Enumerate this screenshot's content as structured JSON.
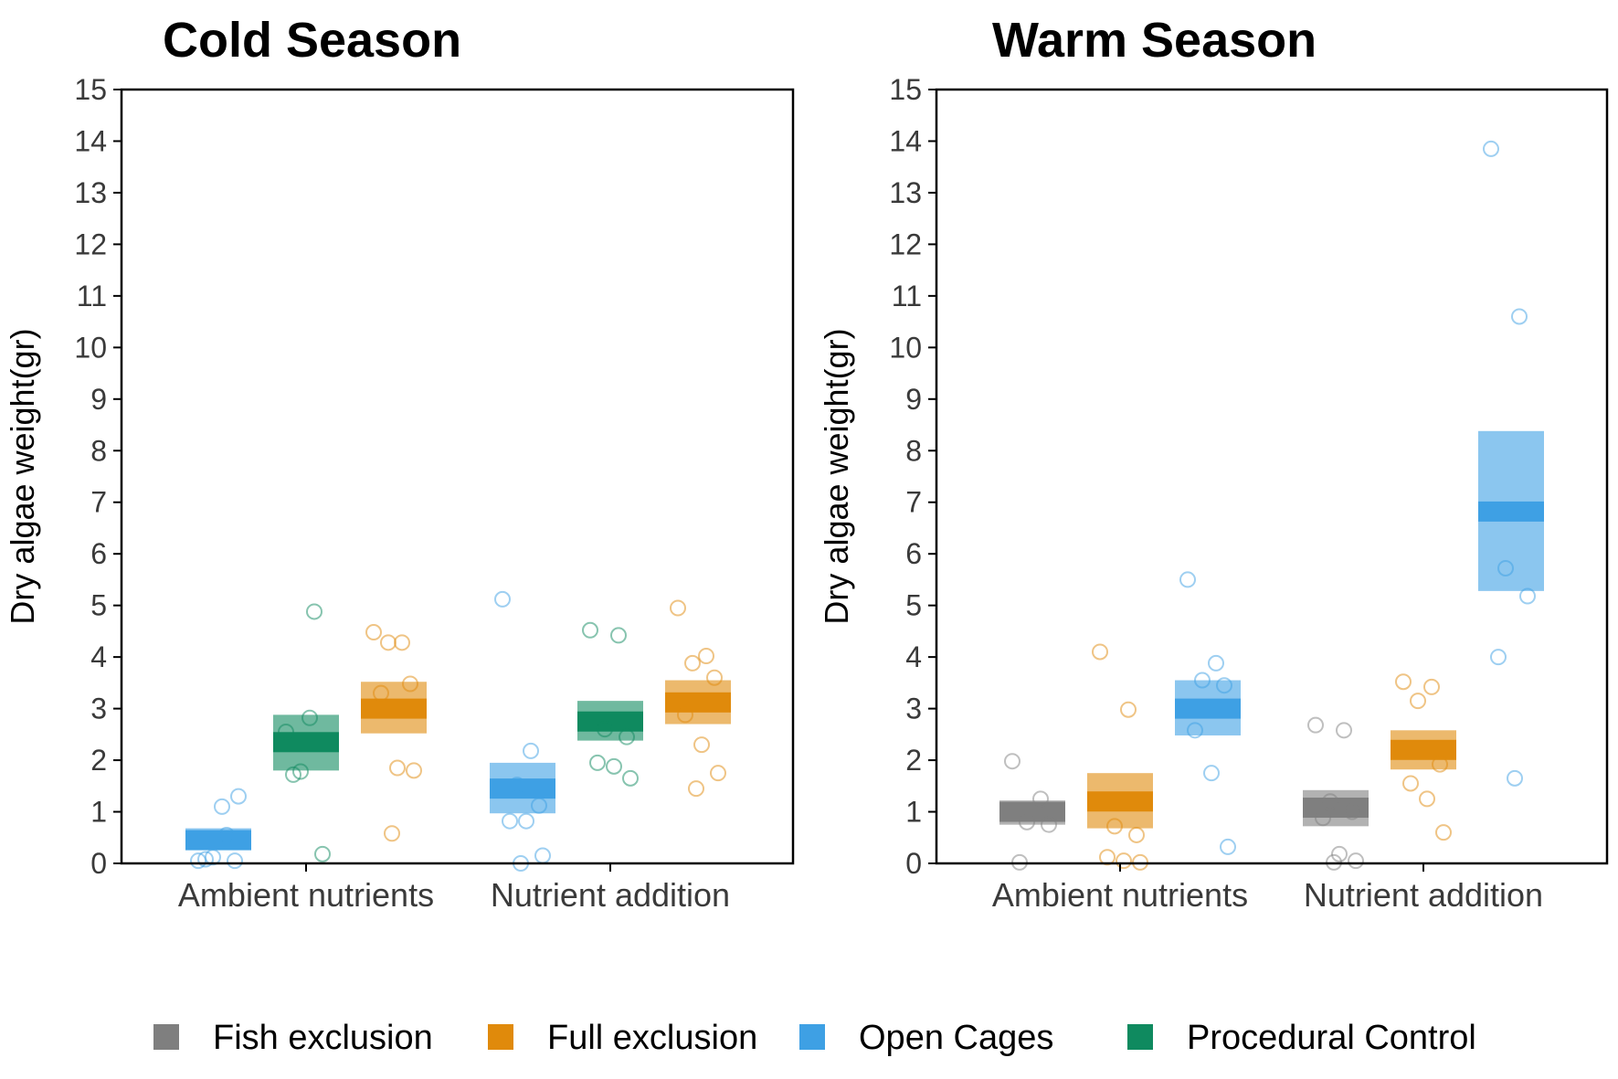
{
  "chart_data": {
    "type": "box",
    "legend": {
      "position": "bottom",
      "entries": [
        {
          "label": "Fish exclusion",
          "color": "#7f7f7f"
        },
        {
          "label": "Full exclusion",
          "color": "#e08a0b"
        },
        {
          "label": "Open Cages",
          "color": "#3ea0e4"
        },
        {
          "label": "Procedural Control",
          "color": "#0f8a5f"
        }
      ]
    },
    "panels": [
      {
        "title": "Cold Season",
        "ylabel": "Dry algae weight(gr)",
        "ylim": [
          0,
          15
        ],
        "yticks": [
          0,
          1,
          2,
          3,
          4,
          5,
          6,
          7,
          8,
          9,
          10,
          11,
          12,
          13,
          14,
          15
        ],
        "categories": [
          "Ambient nutrients",
          "Nutrient addition"
        ],
        "groups": [
          {
            "category": 0,
            "treatment": "Open Cages",
            "color": "#3ea0e4",
            "mean": 0.45,
            "lo": 0.3,
            "hi": 0.68,
            "points": [
              0.05,
              0.55,
              0.12,
              0.05,
              0.08,
              1.1,
              1.3
            ]
          },
          {
            "category": 0,
            "treatment": "Procedural Control",
            "color": "#0f8a5f",
            "mean": 2.35,
            "lo": 1.8,
            "hi": 2.88,
            "points": [
              2.55,
              4.88,
              1.78,
              0.18,
              1.72,
              2.82
            ]
          },
          {
            "category": 0,
            "treatment": "Full exclusion",
            "color": "#e08a0b",
            "mean": 3.0,
            "lo": 2.52,
            "hi": 3.52,
            "points": [
              4.48,
              4.28,
              4.28,
              3.48,
              3.3,
              1.85,
              1.8,
              0.58
            ]
          },
          {
            "category": 1,
            "treatment": "Open Cages",
            "color": "#3ea0e4",
            "mean": 1.45,
            "lo": 0.97,
            "hi": 1.95,
            "points": [
              5.12,
              2.18,
              1.52,
              1.12,
              0.82,
              0.82,
              0.15,
              0.0
            ]
          },
          {
            "category": 1,
            "treatment": "Procedural Control",
            "color": "#0f8a5f",
            "mean": 2.75,
            "lo": 2.38,
            "hi": 3.15,
            "points": [
              4.52,
              4.42,
              2.6,
              2.45,
              1.95,
              1.88,
              1.65
            ]
          },
          {
            "category": 1,
            "treatment": "Full exclusion",
            "color": "#e08a0b",
            "mean": 3.12,
            "lo": 2.7,
            "hi": 3.55,
            "points": [
              4.95,
              4.02,
              3.88,
              3.6,
              2.88,
              2.3,
              1.75,
              1.45
            ]
          }
        ]
      },
      {
        "title": "Warm Season",
        "ylabel": "Dry algae weight(gr)",
        "ylim": [
          0,
          15
        ],
        "yticks": [
          0,
          1,
          2,
          3,
          4,
          5,
          6,
          7,
          8,
          9,
          10,
          11,
          12,
          13,
          14,
          15
        ],
        "categories": [
          "Ambient nutrients",
          "Nutrient addition"
        ],
        "groups": [
          {
            "category": 0,
            "treatment": "Fish exclusion",
            "color": "#7f7f7f",
            "mean": 1.0,
            "lo": 0.75,
            "hi": 1.22,
            "points": [
              1.98,
              1.25,
              0.8,
              0.75,
              0.02
            ]
          },
          {
            "category": 0,
            "treatment": "Full exclusion",
            "color": "#e08a0b",
            "mean": 1.2,
            "lo": 0.68,
            "hi": 1.75,
            "points": [
              4.1,
              2.98,
              0.72,
              0.55,
              0.12,
              0.05,
              0.02
            ]
          },
          {
            "category": 0,
            "treatment": "Open Cages",
            "color": "#3ea0e4",
            "mean": 3.0,
            "lo": 2.48,
            "hi": 3.55,
            "points": [
              5.5,
              3.88,
              3.55,
              3.45,
              2.58,
              1.75,
              0.32
            ]
          },
          {
            "category": 1,
            "treatment": "Fish exclusion",
            "color": "#7f7f7f",
            "mean": 1.08,
            "lo": 0.72,
            "hi": 1.42,
            "points": [
              2.68,
              2.58,
              1.2,
              1.0,
              0.88,
              0.18,
              0.05,
              0.02
            ]
          },
          {
            "category": 1,
            "treatment": "Full exclusion",
            "color": "#e08a0b",
            "mean": 2.2,
            "lo": 1.82,
            "hi": 2.58,
            "points": [
              3.52,
              3.42,
              3.15,
              1.92,
              1.55,
              1.25,
              0.6
            ]
          },
          {
            "category": 1,
            "treatment": "Open Cages",
            "color": "#3ea0e4",
            "mean": 6.82,
            "lo": 5.28,
            "hi": 8.38,
            "points": [
              13.85,
              10.6,
              5.72,
              5.18,
              4.0,
              1.65
            ]
          }
        ]
      }
    ]
  }
}
